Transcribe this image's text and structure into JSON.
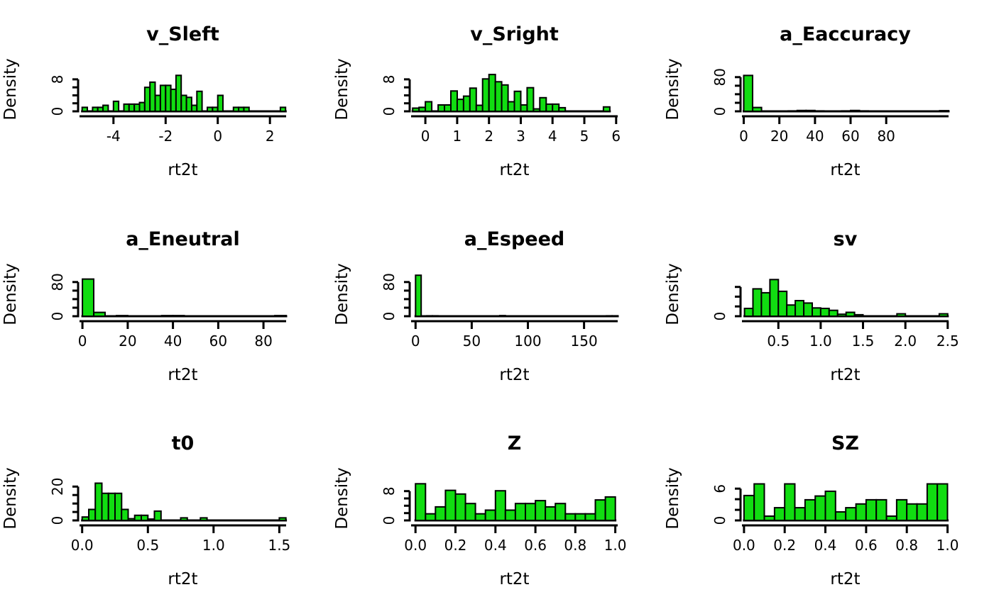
{
  "figure": {
    "background": "#ffffff",
    "bar_fill": "#11dd11",
    "bar_stroke": "#000000",
    "axis_color": "#000000",
    "grid_layout": "3x3",
    "xlabel": "rt2t",
    "ylabel": "Density"
  },
  "chart_data": [
    {
      "type": "bar",
      "title": "v_Sleft",
      "xlabel": "rt2t",
      "ylabel": "Density",
      "bin_width": 0.2,
      "x_axis_range": [
        -5.3,
        2.62
      ],
      "x_ticks": [
        {
          "v": -4,
          "label": "-4"
        },
        {
          "v": -2,
          "label": "-2"
        },
        {
          "v": 0,
          "label": "0"
        },
        {
          "v": 2,
          "label": "2"
        }
      ],
      "y_ticks": [
        0,
        2,
        4,
        6,
        8
      ],
      "y_tick_labels": [
        {
          "v": 0,
          "label": "0"
        },
        {
          "v": 8,
          "label": "8"
        }
      ],
      "y_scale_max": 11,
      "bars": [
        [
          -5.2,
          1
        ],
        [
          -4.8,
          1
        ],
        [
          -4.6,
          1
        ],
        [
          -4.4,
          1.5
        ],
        [
          -4.0,
          2.5
        ],
        [
          -3.6,
          1.8
        ],
        [
          -3.4,
          1.8
        ],
        [
          -3.2,
          1.8
        ],
        [
          -3.0,
          2.2
        ],
        [
          -2.8,
          6
        ],
        [
          -2.6,
          7.3
        ],
        [
          -2.4,
          4
        ],
        [
          -2.2,
          6.5
        ],
        [
          -2.0,
          6.5
        ],
        [
          -1.8,
          5.5
        ],
        [
          -1.6,
          9
        ],
        [
          -1.4,
          4
        ],
        [
          -1.2,
          3.5
        ],
        [
          -1.0,
          1.5
        ],
        [
          -0.8,
          5
        ],
        [
          -0.4,
          1
        ],
        [
          -0.2,
          1
        ],
        [
          0.0,
          4
        ],
        [
          0.6,
          1
        ],
        [
          0.8,
          1
        ],
        [
          1.0,
          1
        ],
        [
          2.4,
          1
        ]
      ]
    },
    {
      "type": "bar",
      "title": "v_Sright",
      "xlabel": "rt2t",
      "ylabel": "Density",
      "bin_width": 0.2,
      "x_axis_range": [
        -0.45,
        6.05
      ],
      "x_ticks": [
        {
          "v": 0,
          "label": "0"
        },
        {
          "v": 1,
          "label": "1"
        },
        {
          "v": 2,
          "label": "2"
        },
        {
          "v": 3,
          "label": "3"
        },
        {
          "v": 4,
          "label": "4"
        },
        {
          "v": 5,
          "label": "5"
        },
        {
          "v": 6,
          "label": "6"
        }
      ],
      "y_ticks": [
        0,
        2,
        4,
        6,
        8
      ],
      "y_tick_labels": [
        {
          "v": 0,
          "label": "0"
        },
        {
          "v": 8,
          "label": "8"
        }
      ],
      "y_scale_max": 11,
      "bars": [
        [
          -0.4,
          0.8
        ],
        [
          -0.2,
          1
        ],
        [
          0.0,
          2.4
        ],
        [
          0.4,
          1.6
        ],
        [
          0.6,
          1.6
        ],
        [
          0.8,
          5.1
        ],
        [
          1.0,
          3
        ],
        [
          1.2,
          3.8
        ],
        [
          1.4,
          5.8
        ],
        [
          1.6,
          1.5
        ],
        [
          1.8,
          8.1
        ],
        [
          2.0,
          9.2
        ],
        [
          2.2,
          7.4
        ],
        [
          2.4,
          6.6
        ],
        [
          2.6,
          2.4
        ],
        [
          2.8,
          5
        ],
        [
          3.0,
          1.6
        ],
        [
          3.2,
          5.9
        ],
        [
          3.4,
          0.6
        ],
        [
          3.6,
          3.4
        ],
        [
          3.8,
          1.8
        ],
        [
          4.0,
          1.8
        ],
        [
          4.2,
          0.9
        ],
        [
          5.6,
          1.1
        ]
      ]
    },
    {
      "type": "bar",
      "title": "a_Eaccuracy",
      "xlabel": "rt2t",
      "ylabel": "Density",
      "bin_width": 5,
      "x_axis_range": [
        -1,
        115
      ],
      "x_ticks": [
        {
          "v": 0,
          "label": "0"
        },
        {
          "v": 20,
          "label": "20"
        },
        {
          "v": 40,
          "label": "40"
        },
        {
          "v": 60,
          "label": "60"
        },
        {
          "v": 80,
          "label": "80"
        }
      ],
      "y_ticks": [
        0,
        20,
        40,
        60,
        80
      ],
      "y_tick_labels": [
        {
          "v": 0,
          "label": "0"
        },
        {
          "v": 80,
          "label": "80"
        }
      ],
      "y_scale_max": 103,
      "bars": [
        [
          0,
          84
        ],
        [
          5,
          9
        ],
        [
          25,
          1
        ],
        [
          30,
          2
        ],
        [
          35,
          2
        ],
        [
          40,
          1
        ],
        [
          55,
          1
        ],
        [
          60,
          2
        ],
        [
          65,
          1
        ],
        [
          110,
          1.5
        ]
      ]
    },
    {
      "type": "bar",
      "title": "a_Eneutral",
      "xlabel": "rt2t",
      "ylabel": "Density",
      "bin_width": 5,
      "x_axis_range": [
        -1.3,
        90
      ],
      "x_ticks": [
        {
          "v": 0,
          "label": "0"
        },
        {
          "v": 20,
          "label": "20"
        },
        {
          "v": 40,
          "label": "40"
        },
        {
          "v": 60,
          "label": "60"
        },
        {
          "v": 80,
          "label": "80"
        }
      ],
      "y_ticks": [
        0,
        20,
        40,
        60,
        80
      ],
      "y_tick_labels": [
        {
          "v": 0,
          "label": "0"
        },
        {
          "v": 80,
          "label": "80"
        }
      ],
      "y_scale_max": 103,
      "bars": [
        [
          0,
          87
        ],
        [
          5,
          9
        ],
        [
          15,
          1.5
        ],
        [
          35,
          1.5
        ],
        [
          40,
          1.5
        ],
        [
          85,
          1.5
        ]
      ]
    },
    {
      "type": "bar",
      "title": "a_Espeed",
      "xlabel": "rt2t",
      "ylabel": "Density",
      "bin_width": 5,
      "x_axis_range": [
        -4,
        180
      ],
      "x_ticks": [
        {
          "v": 0,
          "label": "0"
        },
        {
          "v": 50,
          "label": "50"
        },
        {
          "v": 100,
          "label": "100"
        },
        {
          "v": 150,
          "label": "150"
        }
      ],
      "y_ticks": [
        0,
        20,
        40,
        60,
        80
      ],
      "y_tick_labels": [
        {
          "v": 0,
          "label": "0"
        },
        {
          "v": 80,
          "label": "80"
        }
      ],
      "y_scale_max": 103,
      "bars": [
        [
          0,
          96
        ],
        [
          10,
          1
        ],
        [
          15,
          1
        ],
        [
          75,
          1.5
        ],
        [
          170,
          1
        ],
        [
          175,
          1
        ]
      ]
    },
    {
      "type": "bar",
      "title": "sv",
      "xlabel": "rt2t",
      "ylabel": "Density",
      "bin_width": 0.1,
      "x_axis_range": [
        0.07,
        2.51
      ],
      "x_ticks": [
        {
          "v": 0.5,
          "label": "0.5"
        },
        {
          "v": 1.0,
          "label": "1.0"
        },
        {
          "v": 1.5,
          "label": "1.5"
        },
        {
          "v": 2.0,
          "label": "2.0"
        },
        {
          "v": 2.5,
          "label": "2.5"
        }
      ],
      "y_ticks": [
        0,
        2,
        4,
        6
      ],
      "y_tick_labels": [
        {
          "v": 0,
          "label": "0"
        }
      ],
      "y_scale_max": 9,
      "bars": [
        [
          0.1,
          1.6
        ],
        [
          0.2,
          5.6
        ],
        [
          0.3,
          4.8
        ],
        [
          0.4,
          7.5
        ],
        [
          0.5,
          5.1
        ],
        [
          0.6,
          2.3
        ],
        [
          0.7,
          3.2
        ],
        [
          0.8,
          2.7
        ],
        [
          0.9,
          1.7
        ],
        [
          1.0,
          1.6
        ],
        [
          1.1,
          1.2
        ],
        [
          1.2,
          0.4
        ],
        [
          1.3,
          0.8
        ],
        [
          1.4,
          0.3
        ],
        [
          1.9,
          0.5
        ],
        [
          2.4,
          0.5
        ]
      ]
    },
    {
      "type": "bar",
      "title": "t0",
      "xlabel": "rt2t",
      "ylabel": "Density",
      "bin_width": 0.05,
      "x_axis_range": [
        -0.02,
        1.552
      ],
      "x_ticks": [
        {
          "v": 0.0,
          "label": "0.0"
        },
        {
          "v": 0.5,
          "label": "0.5"
        },
        {
          "v": 1.0,
          "label": "1.0"
        },
        {
          "v": 1.5,
          "label": "1.5"
        }
      ],
      "y_ticks": [
        0,
        5,
        10,
        15,
        20
      ],
      "y_tick_labels": [
        {
          "v": 0,
          "label": "0"
        },
        {
          "v": 20,
          "label": "20"
        }
      ],
      "y_scale_max": 26,
      "bars": [
        [
          0.0,
          2
        ],
        [
          0.05,
          6.5
        ],
        [
          0.1,
          22
        ],
        [
          0.15,
          16
        ],
        [
          0.2,
          16
        ],
        [
          0.25,
          16
        ],
        [
          0.3,
          6.5
        ],
        [
          0.35,
          1
        ],
        [
          0.4,
          3
        ],
        [
          0.45,
          3
        ],
        [
          0.5,
          0.8
        ],
        [
          0.55,
          5.5
        ],
        [
          0.75,
          1.5
        ],
        [
          0.9,
          1.5
        ],
        [
          1.5,
          1.5
        ]
      ]
    },
    {
      "type": "bar",
      "title": "Z",
      "xlabel": "rt2t",
      "ylabel": "Density",
      "bin_width": 0.05,
      "x_axis_range": [
        -0.022,
        1.012
      ],
      "x_ticks": [
        {
          "v": 0.0,
          "label": "0.0"
        },
        {
          "v": 0.2,
          "label": "0.2"
        },
        {
          "v": 0.4,
          "label": "0.4"
        },
        {
          "v": 0.6,
          "label": "0.6"
        },
        {
          "v": 0.8,
          "label": "0.8"
        },
        {
          "v": 1.0,
          "label": "1.0"
        }
      ],
      "y_ticks": [
        0,
        2,
        4,
        6,
        8
      ],
      "y_tick_labels": [
        {
          "v": 0,
          "label": "0"
        },
        {
          "v": 8,
          "label": "8"
        }
      ],
      "y_scale_max": 12,
      "bars": [
        [
          0.0,
          10
        ],
        [
          0.05,
          1.8
        ],
        [
          0.1,
          3.7
        ],
        [
          0.15,
          8.2
        ],
        [
          0.2,
          7.2
        ],
        [
          0.25,
          4.6
        ],
        [
          0.3,
          1.8
        ],
        [
          0.35,
          2.8
        ],
        [
          0.4,
          8.1
        ],
        [
          0.45,
          2.8
        ],
        [
          0.5,
          4.6
        ],
        [
          0.55,
          4.6
        ],
        [
          0.6,
          5.4
        ],
        [
          0.65,
          3.7
        ],
        [
          0.7,
          4.6
        ],
        [
          0.75,
          1.8
        ],
        [
          0.8,
          1.8
        ],
        [
          0.85,
          1.8
        ],
        [
          0.9,
          5.6
        ],
        [
          0.95,
          6.4
        ]
      ]
    },
    {
      "type": "bar",
      "title": "SZ",
      "xlabel": "rt2t",
      "ylabel": "Density",
      "bin_width": 0.05,
      "x_axis_range": [
        -0.01,
        1.005
      ],
      "x_ticks": [
        {
          "v": 0.0,
          "label": "0.0"
        },
        {
          "v": 0.2,
          "label": "0.2"
        },
        {
          "v": 0.4,
          "label": "0.4"
        },
        {
          "v": 0.6,
          "label": "0.6"
        },
        {
          "v": 0.8,
          "label": "0.8"
        },
        {
          "v": 1.0,
          "label": "1.0"
        }
      ],
      "y_ticks": [
        0,
        2,
        4,
        6
      ],
      "y_tick_labels": [
        {
          "v": 0,
          "label": "0"
        },
        {
          "v": 6,
          "label": "6"
        }
      ],
      "y_scale_max": 8.3,
      "bars": [
        [
          0.0,
          4.7
        ],
        [
          0.05,
          6.9
        ],
        [
          0.1,
          0.8
        ],
        [
          0.15,
          2.4
        ],
        [
          0.2,
          6.9
        ],
        [
          0.25,
          2.4
        ],
        [
          0.3,
          3.9
        ],
        [
          0.35,
          4.6
        ],
        [
          0.4,
          5.5
        ],
        [
          0.45,
          1.6
        ],
        [
          0.5,
          2.4
        ],
        [
          0.55,
          3.1
        ],
        [
          0.6,
          3.9
        ],
        [
          0.65,
          3.9
        ],
        [
          0.7,
          0.8
        ],
        [
          0.75,
          3.9
        ],
        [
          0.8,
          3.1
        ],
        [
          0.85,
          3.1
        ],
        [
          0.9,
          6.9
        ],
        [
          0.95,
          6.9
        ]
      ]
    }
  ]
}
